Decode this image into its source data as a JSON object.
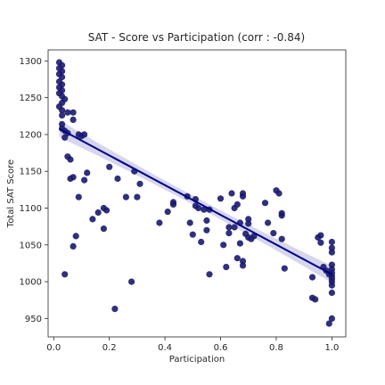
{
  "chart_data": {
    "type": "scatter",
    "title": "SAT - Score vs Participation (corr : -0.84)",
    "xlabel": "Participation",
    "ylabel": "Total SAT Score",
    "xlim": [
      -0.02,
      1.05
    ],
    "ylim": [
      925,
      1315
    ],
    "xticks": [
      0.0,
      0.2,
      0.4,
      0.6,
      0.8,
      1.0
    ],
    "xtick_labels": [
      "0.0",
      "0.2",
      "0.4",
      "0.6",
      "0.8",
      "1.0"
    ],
    "yticks": [
      950,
      1000,
      1050,
      1100,
      1150,
      1200,
      1250,
      1300
    ],
    "ytick_labels": [
      "950",
      "1000",
      "1050",
      "1100",
      "1150",
      "1200",
      "1250",
      "1300"
    ],
    "grid": false,
    "point_color": "#1a1a6e",
    "regression": {
      "color": "#00008b",
      "band_color": "#c8c8e6",
      "x_range": [
        0.02,
        1.0
      ],
      "y_at_x_start": 1208,
      "y_at_x_end": 1010
    },
    "points": [
      {
        "x": 0.02,
        "y": 1298
      },
      {
        "x": 0.03,
        "y": 1294
      },
      {
        "x": 0.02,
        "y": 1290
      },
      {
        "x": 0.03,
        "y": 1286
      },
      {
        "x": 0.02,
        "y": 1282
      },
      {
        "x": 0.03,
        "y": 1278
      },
      {
        "x": 0.02,
        "y": 1272
      },
      {
        "x": 0.03,
        "y": 1268
      },
      {
        "x": 0.02,
        "y": 1264
      },
      {
        "x": 0.03,
        "y": 1260
      },
      {
        "x": 0.02,
        "y": 1256
      },
      {
        "x": 0.03,
        "y": 1252
      },
      {
        "x": 0.04,
        "y": 1248
      },
      {
        "x": 0.03,
        "y": 1243
      },
      {
        "x": 0.02,
        "y": 1238
      },
      {
        "x": 0.03,
        "y": 1233
      },
      {
        "x": 0.05,
        "y": 1230
      },
      {
        "x": 0.03,
        "y": 1226
      },
      {
        "x": 0.07,
        "y": 1230
      },
      {
        "x": 0.07,
        "y": 1220
      },
      {
        "x": 0.03,
        "y": 1214
      },
      {
        "x": 0.03,
        "y": 1208
      },
      {
        "x": 0.04,
        "y": 1205
      },
      {
        "x": 0.05,
        "y": 1202
      },
      {
        "x": 0.04,
        "y": 1196
      },
      {
        "x": 0.09,
        "y": 1200
      },
      {
        "x": 0.1,
        "y": 1198
      },
      {
        "x": 0.11,
        "y": 1200
      },
      {
        "x": 0.05,
        "y": 1170
      },
      {
        "x": 0.06,
        "y": 1166
      },
      {
        "x": 0.07,
        "y": 1142
      },
      {
        "x": 0.06,
        "y": 1140
      },
      {
        "x": 0.04,
        "y": 1010
      },
      {
        "x": 0.07,
        "y": 1048
      },
      {
        "x": 0.08,
        "y": 1062
      },
      {
        "x": 0.09,
        "y": 1115
      },
      {
        "x": 0.11,
        "y": 1138
      },
      {
        "x": 0.12,
        "y": 1148
      },
      {
        "x": 0.14,
        "y": 1085
      },
      {
        "x": 0.16,
        "y": 1094
      },
      {
        "x": 0.18,
        "y": 1100
      },
      {
        "x": 0.18,
        "y": 1072
      },
      {
        "x": 0.19,
        "y": 1097
      },
      {
        "x": 0.2,
        "y": 1156
      },
      {
        "x": 0.22,
        "y": 963
      },
      {
        "x": 0.23,
        "y": 1140
      },
      {
        "x": 0.26,
        "y": 1115
      },
      {
        "x": 0.28,
        "y": 1000
      },
      {
        "x": 0.29,
        "y": 1150
      },
      {
        "x": 0.3,
        "y": 1115
      },
      {
        "x": 0.31,
        "y": 1133
      },
      {
        "x": 0.38,
        "y": 1080
      },
      {
        "x": 0.41,
        "y": 1095
      },
      {
        "x": 0.43,
        "y": 1108
      },
      {
        "x": 0.43,
        "y": 1105
      },
      {
        "x": 0.48,
        "y": 1116
      },
      {
        "x": 0.49,
        "y": 1080
      },
      {
        "x": 0.5,
        "y": 1064
      },
      {
        "x": 0.51,
        "y": 1103
      },
      {
        "x": 0.51,
        "y": 1112
      },
      {
        "x": 0.52,
        "y": 1100
      },
      {
        "x": 0.53,
        "y": 1054
      },
      {
        "x": 0.54,
        "y": 1098
      },
      {
        "x": 0.55,
        "y": 1083
      },
      {
        "x": 0.55,
        "y": 1070
      },
      {
        "x": 0.56,
        "y": 1010
      },
      {
        "x": 0.56,
        "y": 1098
      },
      {
        "x": 0.6,
        "y": 1113
      },
      {
        "x": 0.61,
        "y": 1050
      },
      {
        "x": 0.62,
        "y": 1020
      },
      {
        "x": 0.63,
        "y": 1066
      },
      {
        "x": 0.63,
        "y": 1074
      },
      {
        "x": 0.64,
        "y": 1120
      },
      {
        "x": 0.65,
        "y": 1100
      },
      {
        "x": 0.65,
        "y": 1074
      },
      {
        "x": 0.66,
        "y": 1032
      },
      {
        "x": 0.66,
        "y": 1105
      },
      {
        "x": 0.67,
        "y": 1052
      },
      {
        "x": 0.67,
        "y": 1080
      },
      {
        "x": 0.68,
        "y": 1120
      },
      {
        "x": 0.68,
        "y": 1116
      },
      {
        "x": 0.68,
        "y": 1028
      },
      {
        "x": 0.68,
        "y": 1022
      },
      {
        "x": 0.69,
        "y": 1065
      },
      {
        "x": 0.7,
        "y": 1085
      },
      {
        "x": 0.7,
        "y": 1060
      },
      {
        "x": 0.7,
        "y": 1079
      },
      {
        "x": 0.71,
        "y": 1058
      },
      {
        "x": 0.72,
        "y": 1062
      },
      {
        "x": 0.76,
        "y": 1107
      },
      {
        "x": 0.77,
        "y": 1080
      },
      {
        "x": 0.79,
        "y": 1066
      },
      {
        "x": 0.8,
        "y": 1124
      },
      {
        "x": 0.81,
        "y": 1120
      },
      {
        "x": 0.82,
        "y": 1093
      },
      {
        "x": 0.82,
        "y": 1058
      },
      {
        "x": 0.82,
        "y": 1090
      },
      {
        "x": 0.83,
        "y": 1018
      },
      {
        "x": 0.93,
        "y": 978
      },
      {
        "x": 0.93,
        "y": 1006
      },
      {
        "x": 0.94,
        "y": 976
      },
      {
        "x": 0.95,
        "y": 1060
      },
      {
        "x": 0.96,
        "y": 1053
      },
      {
        "x": 0.96,
        "y": 1063
      },
      {
        "x": 0.97,
        "y": 1020
      },
      {
        "x": 0.98,
        "y": 1015
      },
      {
        "x": 0.99,
        "y": 943
      },
      {
        "x": 0.99,
        "y": 1010
      },
      {
        "x": 1.0,
        "y": 950
      },
      {
        "x": 1.0,
        "y": 985
      },
      {
        "x": 1.0,
        "y": 995
      },
      {
        "x": 1.0,
        "y": 1000
      },
      {
        "x": 1.0,
        "y": 1004
      },
      {
        "x": 1.0,
        "y": 1008
      },
      {
        "x": 1.0,
        "y": 1012
      },
      {
        "x": 1.0,
        "y": 1017
      },
      {
        "x": 1.0,
        "y": 1023
      },
      {
        "x": 1.0,
        "y": 1040
      },
      {
        "x": 1.0,
        "y": 1046
      },
      {
        "x": 1.0,
        "y": 1054
      }
    ]
  }
}
